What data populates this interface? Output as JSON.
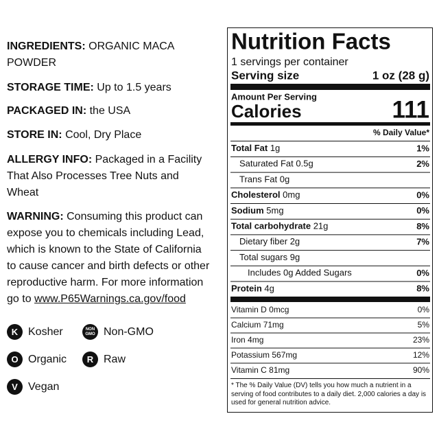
{
  "info": [
    {
      "label": "INGREDIENTS:",
      "text": "ORGANIC MACA POWDER"
    },
    {
      "label": "STORAGE TIME:",
      "text": "Up to 1.5 years"
    },
    {
      "label": "PACKAGED IN:",
      "text": "the USA"
    },
    {
      "label": "STORE IN:",
      "text": "Cool, Dry Place"
    },
    {
      "label": "ALLERGY INFO:",
      "text": "Packaged in a Facility That Also Processes Tree Nuts and Wheat"
    },
    {
      "label": "WARNING:",
      "text": "Consuming this product can expose you to chemicals including Lead, which is known to the State of California to cause cancer and birth defects or other reproductive harm. For more information go to",
      "link": "www.P65Warnings.ca.gov/food"
    }
  ],
  "badges": [
    {
      "icon": "K",
      "label": "Kosher"
    },
    {
      "icon": "NON GMO",
      "label": "Non-GMO"
    },
    {
      "icon": "O",
      "label": "Organic"
    },
    {
      "icon": "R",
      "label": "Raw"
    },
    {
      "icon": "V",
      "label": "Vegan"
    }
  ],
  "nutrition": {
    "title": "Nutrition Facts",
    "servings": "1 servings per container",
    "serving_size_label": "Serving size",
    "serving_size": "1 oz (28 g)",
    "amount_per_serving": "Amount Per Serving",
    "calories_label": "Calories",
    "calories": "111",
    "dv_header": "% Daily Value*",
    "nutrients": [
      {
        "name": "Total Fat",
        "amount": "1g",
        "dv": "1%"
      },
      {
        "name": "Saturated Fat",
        "amount": "0.5g",
        "dv": "2%"
      },
      {
        "name": "Trans Fat",
        "amount": "0g"
      },
      {
        "name": "Cholesterol",
        "amount": "0mg",
        "dv": "0%"
      },
      {
        "name": "Sodium",
        "amount": "5mg",
        "dv": "0%"
      },
      {
        "name": "Total carbohydrate",
        "amount": "21g",
        "dv": "8%"
      },
      {
        "name": "Dietary fiber",
        "amount": "2g",
        "dv": "7%"
      },
      {
        "name": "Total sugars",
        "amount": "9g"
      },
      {
        "name": "Includes 0g Added Sugars",
        "dv": "0%"
      },
      {
        "name": "Protein",
        "amount": "4g",
        "dv": "8%"
      }
    ],
    "vitamins": [
      {
        "name": "Vitamin D",
        "amount": "0mcg",
        "dv": "0%"
      },
      {
        "name": "Calcium",
        "amount": "71mg",
        "dv": "5%"
      },
      {
        "name": "Iron",
        "amount": "4mg",
        "dv": "23%"
      },
      {
        "name": "Potassium",
        "amount": "567mg",
        "dv": "12%"
      },
      {
        "name": "Vitamin C",
        "amount": "81mg",
        "dv": "90%"
      }
    ],
    "footnote": "* The % Daily Value (DV) tells you how much a nutrient in a serving of food contributes to a daily diet. 2,000 calories a day is used for general nutrition advice."
  }
}
